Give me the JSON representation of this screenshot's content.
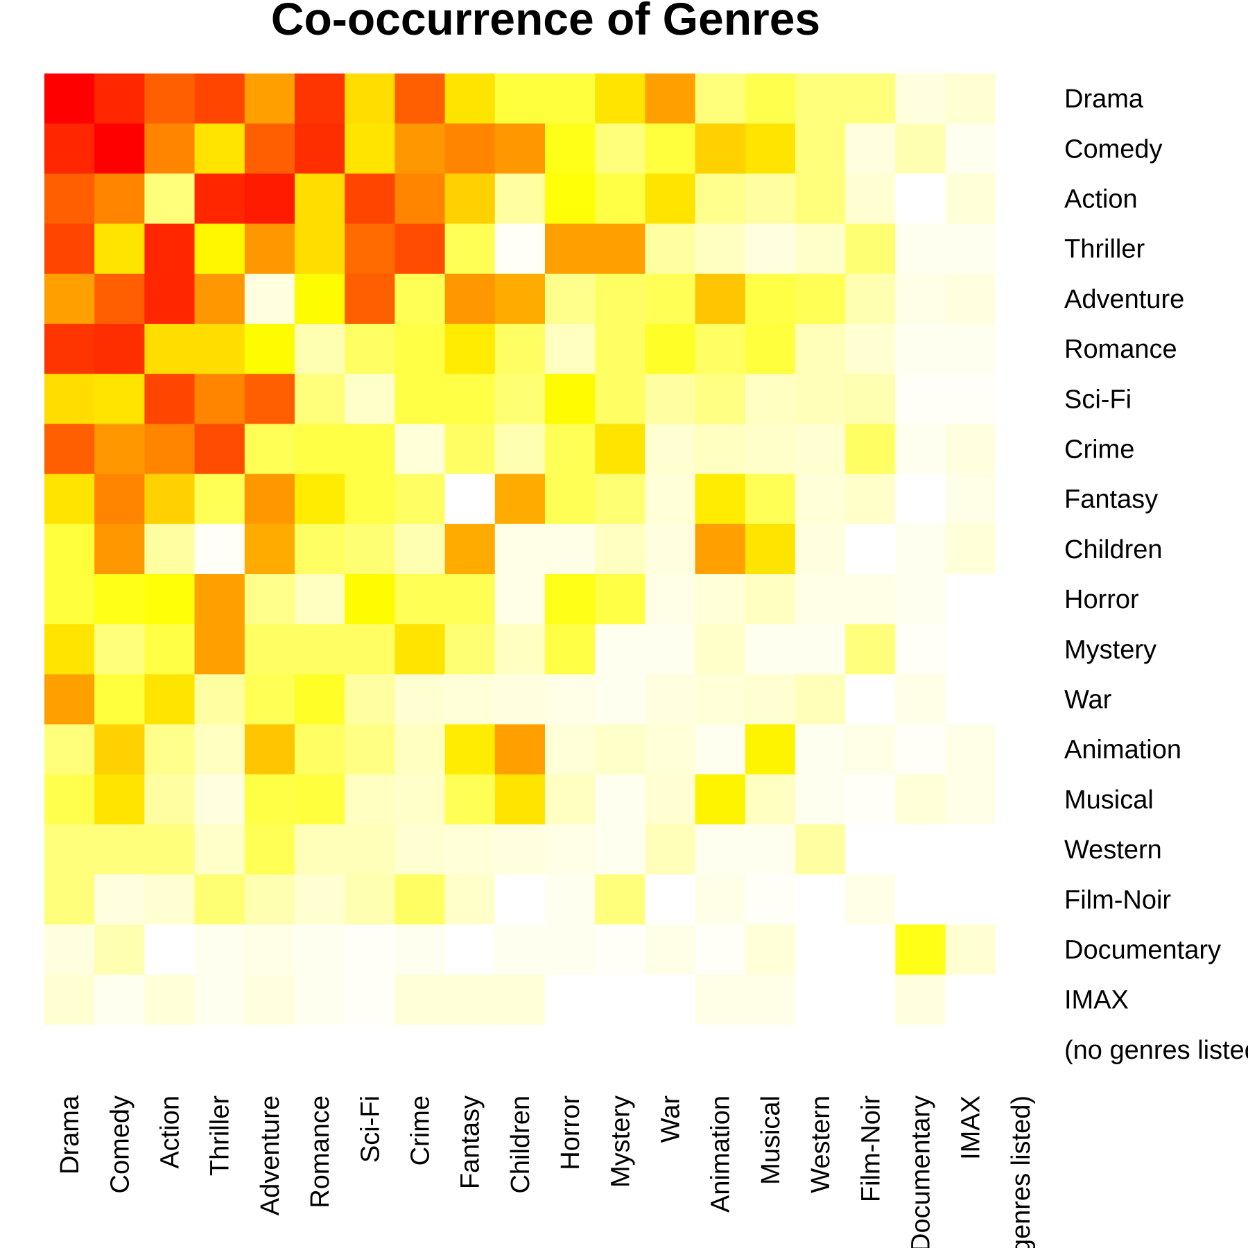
{
  "chart_data": {
    "type": "heatmap",
    "title": "Co-occurrence of Genres",
    "xlabel": "",
    "ylabel": "",
    "categories": [
      "Drama",
      "Comedy",
      "Action",
      "Thriller",
      "Adventure",
      "Romance",
      "Sci-Fi",
      "Crime",
      "Fantasy",
      "Children",
      "Horror",
      "Mystery",
      "War",
      "Animation",
      "Musical",
      "Western",
      "Film-Noir",
      "Documentary",
      "IMAX",
      "(no genres listed)"
    ],
    "colormap": "heat (red = high, yellow = mid, white = low)",
    "color_scale_min": 0,
    "color_scale_max": 1,
    "legend": "none",
    "grid": false,
    "values": [
      [
        1.0,
        0.9,
        0.75,
        0.82,
        0.58,
        0.86,
        0.42,
        0.75,
        0.4,
        0.25,
        0.25,
        0.4,
        0.58,
        0.17,
        0.23,
        0.17,
        0.17,
        0.04,
        0.06,
        0
      ],
      [
        0.9,
        1.0,
        0.65,
        0.4,
        0.75,
        0.88,
        0.4,
        0.6,
        0.65,
        0.6,
        0.3,
        0.17,
        0.25,
        0.45,
        0.4,
        0.17,
        0.04,
        0.1,
        0.02,
        0
      ],
      [
        0.75,
        0.65,
        0.17,
        0.9,
        0.93,
        0.42,
        0.82,
        0.65,
        0.45,
        0.12,
        0.32,
        0.24,
        0.4,
        0.15,
        0.12,
        0.17,
        0.06,
        0.0,
        0.05,
        0
      ],
      [
        0.82,
        0.4,
        0.9,
        0.35,
        0.6,
        0.42,
        0.72,
        0.8,
        0.22,
        0.01,
        0.58,
        0.58,
        0.12,
        0.08,
        0.04,
        0.07,
        0.18,
        0.02,
        0.02,
        0
      ],
      [
        0.58,
        0.75,
        0.9,
        0.6,
        0.04,
        0.34,
        0.75,
        0.22,
        0.6,
        0.55,
        0.15,
        0.2,
        0.22,
        0.48,
        0.24,
        0.22,
        0.1,
        0.03,
        0.04,
        0
      ],
      [
        0.86,
        0.88,
        0.42,
        0.42,
        0.34,
        0.1,
        0.2,
        0.24,
        0.38,
        0.2,
        0.08,
        0.2,
        0.28,
        0.2,
        0.25,
        0.09,
        0.06,
        0.02,
        0.02,
        0
      ],
      [
        0.42,
        0.4,
        0.82,
        0.65,
        0.75,
        0.17,
        0.07,
        0.24,
        0.24,
        0.18,
        0.34,
        0.2,
        0.12,
        0.16,
        0.08,
        0.09,
        0.1,
        0.01,
        0.01,
        0
      ],
      [
        0.75,
        0.6,
        0.65,
        0.8,
        0.22,
        0.24,
        0.24,
        0.05,
        0.2,
        0.1,
        0.22,
        0.4,
        0.06,
        0.08,
        0.07,
        0.06,
        0.2,
        0.02,
        0.04,
        0
      ],
      [
        0.4,
        0.65,
        0.45,
        0.22,
        0.6,
        0.38,
        0.24,
        0.2,
        0.0,
        0.55,
        0.22,
        0.18,
        0.05,
        0.38,
        0.22,
        0.05,
        0.07,
        0.0,
        0.03,
        0
      ],
      [
        0.25,
        0.6,
        0.12,
        0.01,
        0.55,
        0.2,
        0.18,
        0.1,
        0.55,
        0.03,
        0.03,
        0.08,
        0.04,
        0.58,
        0.4,
        0.04,
        0.0,
        0.02,
        0.05,
        0
      ],
      [
        0.25,
        0.3,
        0.32,
        0.58,
        0.15,
        0.08,
        0.34,
        0.22,
        0.22,
        0.03,
        0.3,
        0.24,
        0.03,
        0.05,
        0.08,
        0.03,
        0.03,
        0.02,
        0.0,
        0
      ],
      [
        0.4,
        0.17,
        0.24,
        0.58,
        0.2,
        0.2,
        0.2,
        0.4,
        0.18,
        0.08,
        0.24,
        0.02,
        0.02,
        0.07,
        0.02,
        0.02,
        0.17,
        0.01,
        0.0,
        0
      ],
      [
        0.58,
        0.25,
        0.4,
        0.12,
        0.22,
        0.28,
        0.12,
        0.06,
        0.05,
        0.04,
        0.03,
        0.02,
        0.04,
        0.05,
        0.06,
        0.09,
        0.0,
        0.03,
        0.0,
        0
      ],
      [
        0.17,
        0.45,
        0.15,
        0.08,
        0.48,
        0.2,
        0.16,
        0.08,
        0.38,
        0.58,
        0.05,
        0.07,
        0.05,
        0.02,
        0.36,
        0.02,
        0.03,
        0.01,
        0.03,
        0
      ],
      [
        0.23,
        0.4,
        0.12,
        0.04,
        0.24,
        0.25,
        0.08,
        0.07,
        0.22,
        0.4,
        0.08,
        0.02,
        0.06,
        0.36,
        0.08,
        0.02,
        0.01,
        0.05,
        0.03,
        0
      ],
      [
        0.17,
        0.17,
        0.17,
        0.07,
        0.22,
        0.09,
        0.09,
        0.06,
        0.05,
        0.04,
        0.03,
        0.02,
        0.09,
        0.02,
        0.02,
        0.12,
        0.0,
        0.0,
        0.0,
        0
      ],
      [
        0.17,
        0.04,
        0.06,
        0.18,
        0.1,
        0.06,
        0.1,
        0.2,
        0.07,
        0.0,
        0.02,
        0.17,
        0.0,
        0.03,
        0.01,
        0.0,
        0.03,
        0.0,
        0.0,
        0
      ],
      [
        0.04,
        0.1,
        0.0,
        0.02,
        0.03,
        0.02,
        0.01,
        0.02,
        0.0,
        0.02,
        0.02,
        0.01,
        0.03,
        0.01,
        0.05,
        0.0,
        0.0,
        0.3,
        0.06,
        0
      ],
      [
        0.06,
        0.02,
        0.05,
        0.02,
        0.04,
        0.02,
        0.01,
        0.05,
        0.05,
        0.05,
        0.0,
        0.0,
        0.0,
        0.03,
        0.03,
        0.0,
        0.0,
        0.04,
        0.0,
        0
      ],
      [
        0,
        0,
        0,
        0,
        0,
        0,
        0,
        0,
        0,
        0,
        0,
        0,
        0,
        0,
        0,
        0,
        0,
        0,
        0,
        0
      ]
    ]
  }
}
